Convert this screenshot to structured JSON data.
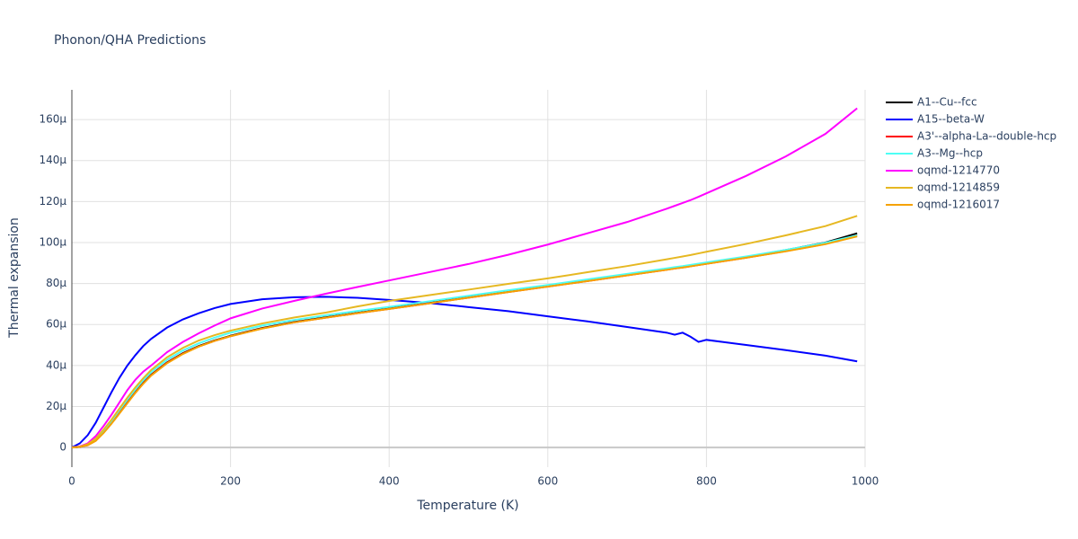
{
  "chart_data": {
    "type": "line",
    "title": "Phonon/QHA Predictions",
    "x_label": "Temperature (K)",
    "y_label": "Thermal expansion",
    "x": [
      0,
      10,
      20,
      30,
      40,
      50,
      60,
      70,
      80,
      90,
      100,
      120,
      140,
      160,
      180,
      200,
      240,
      280,
      320,
      360,
      400,
      450,
      500,
      550,
      600,
      650,
      700,
      750,
      760,
      770,
      780,
      790,
      800,
      850,
      900,
      950,
      990
    ],
    "xlim": [
      0,
      1000
    ],
    "xticks": [
      0,
      200,
      400,
      600,
      800,
      1000
    ],
    "ylim": [
      -9.6,
      174.5
    ],
    "yticks": [
      0,
      {
        "value": 20,
        "label": "20μ"
      },
      {
        "value": 40,
        "label": "40μ"
      },
      {
        "value": 60,
        "label": "60μ"
      },
      {
        "value": 80,
        "label": "80μ"
      },
      {
        "value": 100,
        "label": "100μ"
      },
      {
        "value": 120,
        "label": "120μ"
      },
      {
        "value": 140,
        "label": "140μ"
      },
      {
        "value": 160,
        "label": "160μ"
      }
    ],
    "grid": true,
    "legend": "right",
    "series": [
      {
        "name": "A1--Cu--fcc",
        "color": "#000000",
        "values": [
          0,
          0.3,
          1.2,
          3.5,
          7.5,
          12,
          17,
          22,
          27,
          31.5,
          35.5,
          41.5,
          46,
          49.5,
          52.2,
          54.5,
          58.3,
          61.2,
          63.5,
          65.7,
          67.8,
          70.5,
          73.3,
          76,
          78.7,
          81.4,
          84.2,
          87,
          87.6,
          88.1,
          88.7,
          89.3,
          89.9,
          93,
          96.3,
          100,
          104.5
        ]
      },
      {
        "name": "A15--beta-W",
        "color": "#0000ff",
        "values": [
          0,
          2,
          6,
          12,
          19.5,
          27,
          34,
          40,
          45,
          49.5,
          53,
          58.5,
          62.5,
          65.5,
          68,
          70,
          72.3,
          73.3,
          73.5,
          73,
          72,
          70.5,
          68.5,
          66.5,
          64,
          61.5,
          58.8,
          56,
          55,
          56,
          54,
          51.5,
          52.5,
          50,
          47.5,
          44.8,
          42
        ]
      },
      {
        "name": "A3'--alpha-La--double-hcp",
        "color": "#ff0000",
        "values": [
          0,
          0.3,
          1.1,
          3.3,
          7.3,
          11.8,
          16.8,
          21.8,
          26.8,
          31.3,
          35.3,
          41.3,
          45.8,
          49.3,
          52,
          54.3,
          58.1,
          61,
          63.3,
          65.5,
          67.6,
          70.3,
          73.1,
          75.8,
          78.5,
          81.2,
          84,
          86.7,
          87.3,
          87.8,
          88.4,
          89,
          89.6,
          92.6,
          95.8,
          99.3,
          103.5
        ]
      },
      {
        "name": "A3--Mg--hcp",
        "color": "#4dfff5",
        "values": [
          0,
          0.4,
          1.5,
          4,
          8.3,
          13,
          18.2,
          23.3,
          28.3,
          32.8,
          36.8,
          42.8,
          47.3,
          50.8,
          53.6,
          56,
          59.5,
          62.2,
          64.5,
          66.6,
          68.6,
          71.3,
          74,
          76.7,
          79.3,
          82,
          84.7,
          87.4,
          88,
          88.5,
          89.1,
          89.7,
          90.3,
          93.2,
          96.4,
          99.9,
          103.5
        ]
      },
      {
        "name": "oqmd-1214770",
        "color": "#ff00ff",
        "values": [
          0,
          0.5,
          2,
          5.5,
          10.5,
          16,
          22,
          28,
          33,
          37,
          40,
          46.5,
          51.5,
          55.7,
          59.5,
          63,
          67.8,
          71.5,
          75,
          78.3,
          81.5,
          85.5,
          89.5,
          94,
          99,
          104.5,
          110,
          116.5,
          117.9,
          119.3,
          120.7,
          122.3,
          124,
          132.5,
          142,
          153,
          165.5
        ]
      },
      {
        "name": "oqmd-1214859",
        "color": "#e6b822",
        "values": [
          0,
          0.4,
          1.6,
          4.3,
          8.7,
          13.6,
          19,
          24.3,
          29.3,
          33.8,
          37.8,
          44,
          48.6,
          52.2,
          54.8,
          57,
          60.5,
          63.4,
          65.8,
          68.8,
          71.5,
          74.3,
          77,
          79.8,
          82.5,
          85.5,
          88.5,
          91.8,
          92.5,
          93.2,
          93.9,
          94.7,
          95.5,
          99.3,
          103.5,
          108,
          113
        ]
      },
      {
        "name": "oqmd-1216017",
        "color": "#f5a200",
        "values": [
          0,
          0.3,
          1.1,
          3.2,
          7.1,
          11.6,
          16.6,
          21.6,
          26.6,
          31.1,
          35.1,
          41.1,
          45.6,
          49.2,
          52,
          54.3,
          58,
          61,
          63.3,
          65.5,
          67.6,
          70.3,
          73.1,
          75.8,
          78.5,
          81.2,
          84,
          86.7,
          87.3,
          87.8,
          88.4,
          89,
          89.6,
          92.6,
          95.7,
          99.2,
          103
        ]
      }
    ]
  }
}
